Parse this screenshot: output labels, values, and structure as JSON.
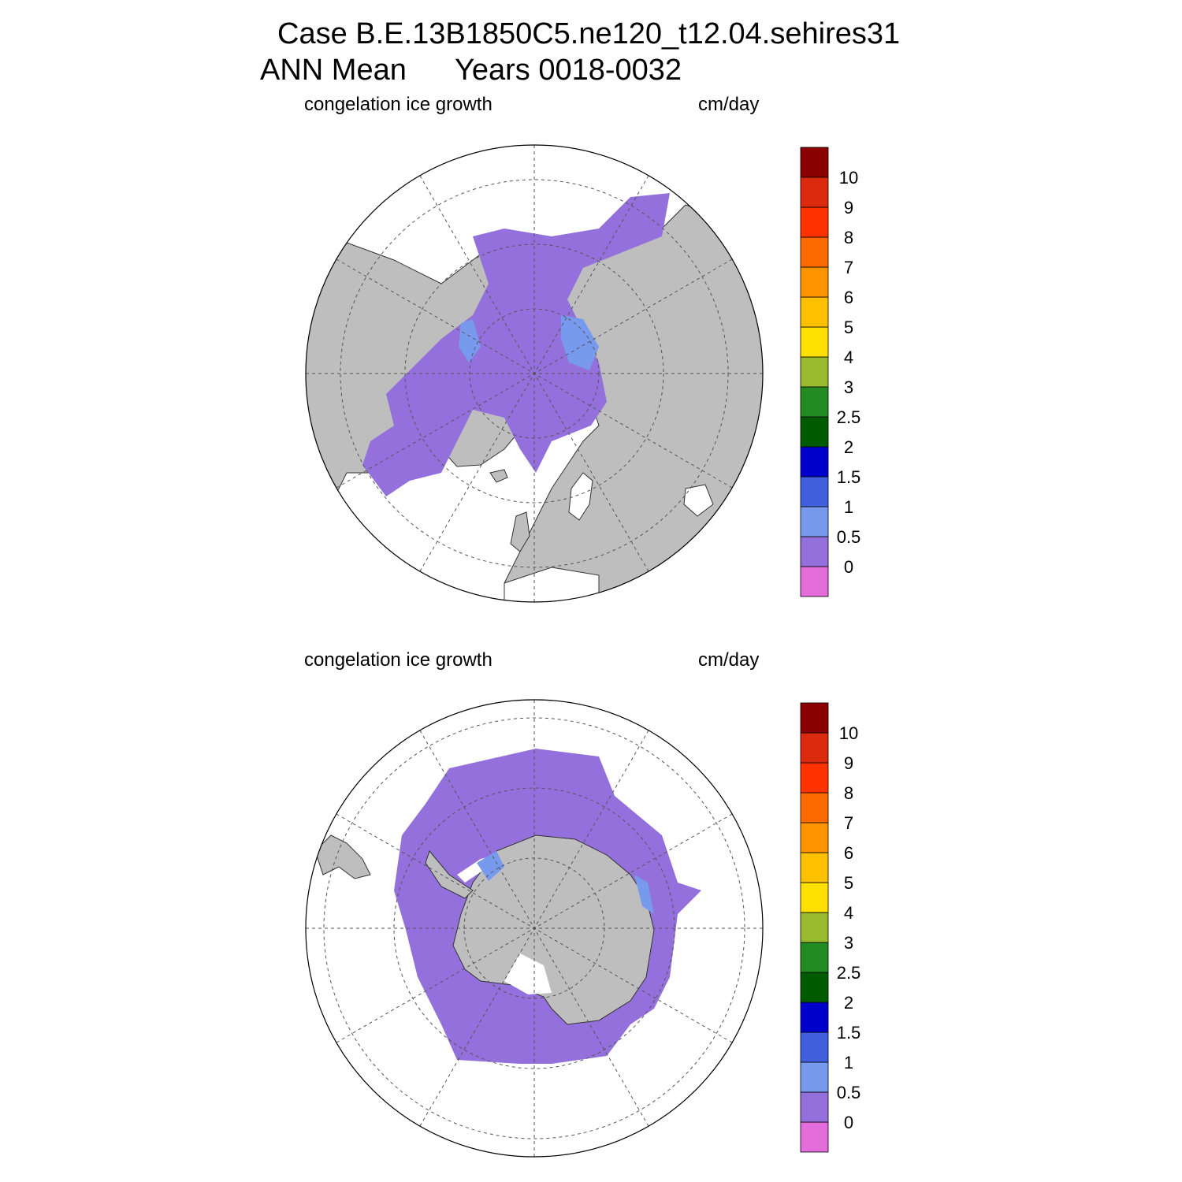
{
  "title": {
    "line1": "Case B.E.13B1850C5.ne120_t12.04.sehires31",
    "line2_period": "ANN Mean",
    "line2_years": "Years 0018-0032"
  },
  "panels": [
    {
      "hemisphere": "north",
      "left_label": "congelation ice growth",
      "right_label": "cm/day"
    },
    {
      "hemisphere": "south",
      "left_label": "congelation ice growth",
      "right_label": "cm/day"
    }
  ],
  "colorbar": {
    "colors": [
      "#e36edb",
      "#9370db",
      "#7799ee",
      "#4060e0",
      "#0000cc",
      "#005a00",
      "#228b22",
      "#9aba30",
      "#ffe000",
      "#ffc000",
      "#ff9400",
      "#ff6a00",
      "#ff3200",
      "#dc2a0e",
      "#8b0000"
    ],
    "labels": [
      "0",
      "0.5",
      "1",
      "1.5",
      "2",
      "2.5",
      "3",
      "4",
      "5",
      "6",
      "7",
      "8",
      "9",
      "10"
    ]
  },
  "map_colors": {
    "land": "#bebebe",
    "ice": "#9370db",
    "ice_high": "#7799ee",
    "ocean": "#ffffff"
  }
}
